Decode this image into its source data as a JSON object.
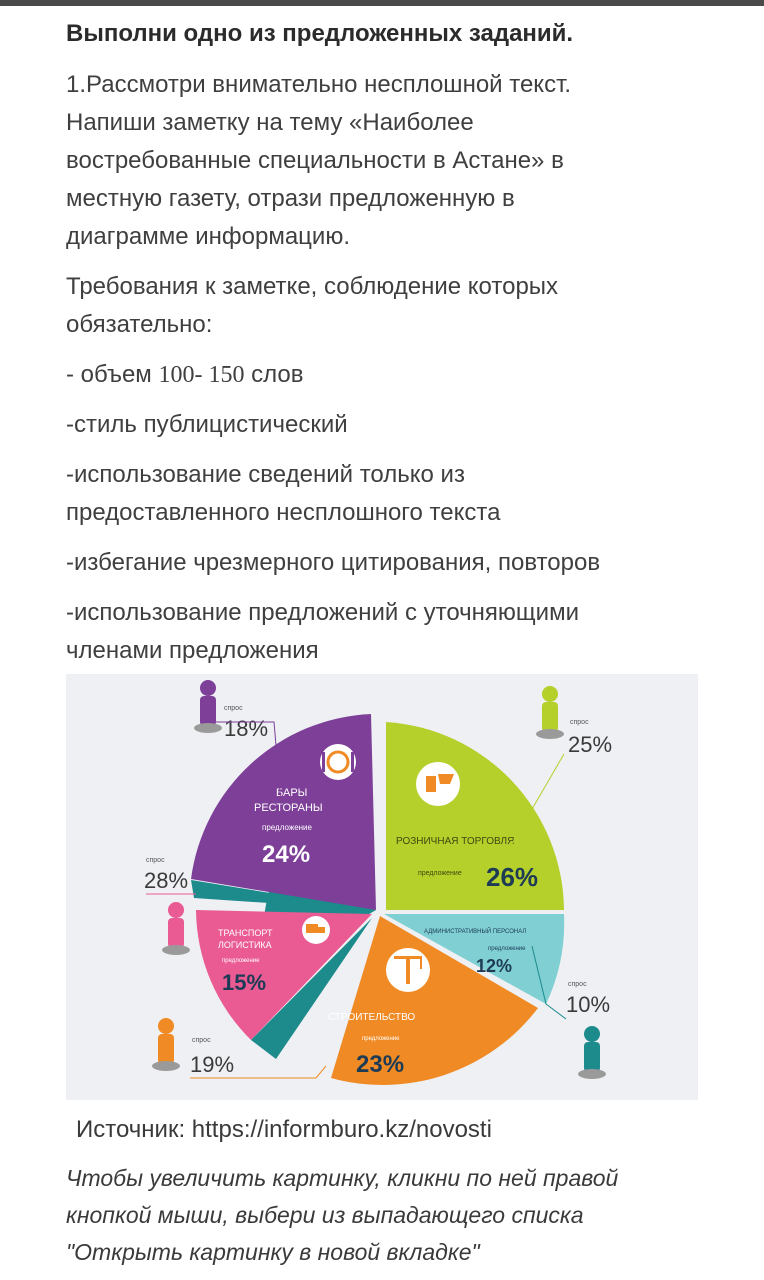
{
  "heading": "Выполни одно из предложенных заданий.",
  "task_line1": "1.Рассмотри внимательно несплошной текст.",
  "task_line2": "Напиши заметку на тему «Наиболее",
  "task_line3": "востребованные специальности в Астане» в",
  "task_line4": "местную газету, отрази предложенную в",
  "task_line5": "диаграмме информацию.",
  "req_intro_line1": "Требования к заметке, соблюдение которых",
  "req_intro_line2": "обязательно:",
  "requirements": [
    {
      "prefix": "- объем ",
      "num": "100- 150",
      "suffix": " слов"
    },
    {
      "text": "-стиль публицистический"
    },
    {
      "line1": "-использование сведений только из",
      "line2": "предоставленного несплошного текста"
    },
    {
      "text": "-избегание чрезмерного цитирования, повторов"
    },
    {
      "line1": "-использование предложений с уточняющими",
      "line2": "членами предложения"
    }
  ],
  "chart_data": {
    "type": "pie",
    "categories": [
      "Розничная торговля",
      "Административный персонал",
      "Строительство",
      "Транспорт логистика",
      "Бары рестораны"
    ],
    "labels": {
      "bars_line1": "БАРЫ",
      "bars_line2": "РЕСТОРАНЫ",
      "retail": "РОЗНИЧНАЯ ТОРГОВЛЯ",
      "admin": "АДМИНИСТРАТИВНЫЙ ПЕРСОНАЛ",
      "transport_line1": "ТРАНСПОРТ",
      "transport_line2": "ЛОГИСТИКА",
      "construction": "СТРОИТЕЛЬСТВО"
    },
    "series": [
      {
        "name": "предложение",
        "values": [
          26,
          12,
          23,
          15,
          24
        ]
      },
      {
        "name": "спрос",
        "values": [
          25,
          10,
          19,
          28,
          18
        ]
      }
    ],
    "offer_label": "предложение",
    "demand_label": "спрос",
    "offer_display": {
      "retail": "26%",
      "admin": "12%",
      "construction": "23%",
      "transport": "15%",
      "bars": "24%"
    },
    "demand_display": {
      "retail": "25%",
      "admin": "10%",
      "construction": "19%",
      "transport": "28%",
      "bars": "18%"
    },
    "colors": {
      "retail": "#b5cf2b",
      "admin": "#7fcfd3",
      "construction": "#f08a24",
      "transport": "#ea5a93",
      "bars": "#7d3f98",
      "gap": "#1d8a8c",
      "figure": "#7d7d7d"
    }
  },
  "source": "Источник: https://informburo.kz/novosti",
  "hint_line1": "Чтобы увеличить картинку, кликни по ней правой",
  "hint_line2": "кнопкой мыши, выбери из выпадающего списка",
  "hint_line3": "\"Открыть картинку в новой вкладке\""
}
